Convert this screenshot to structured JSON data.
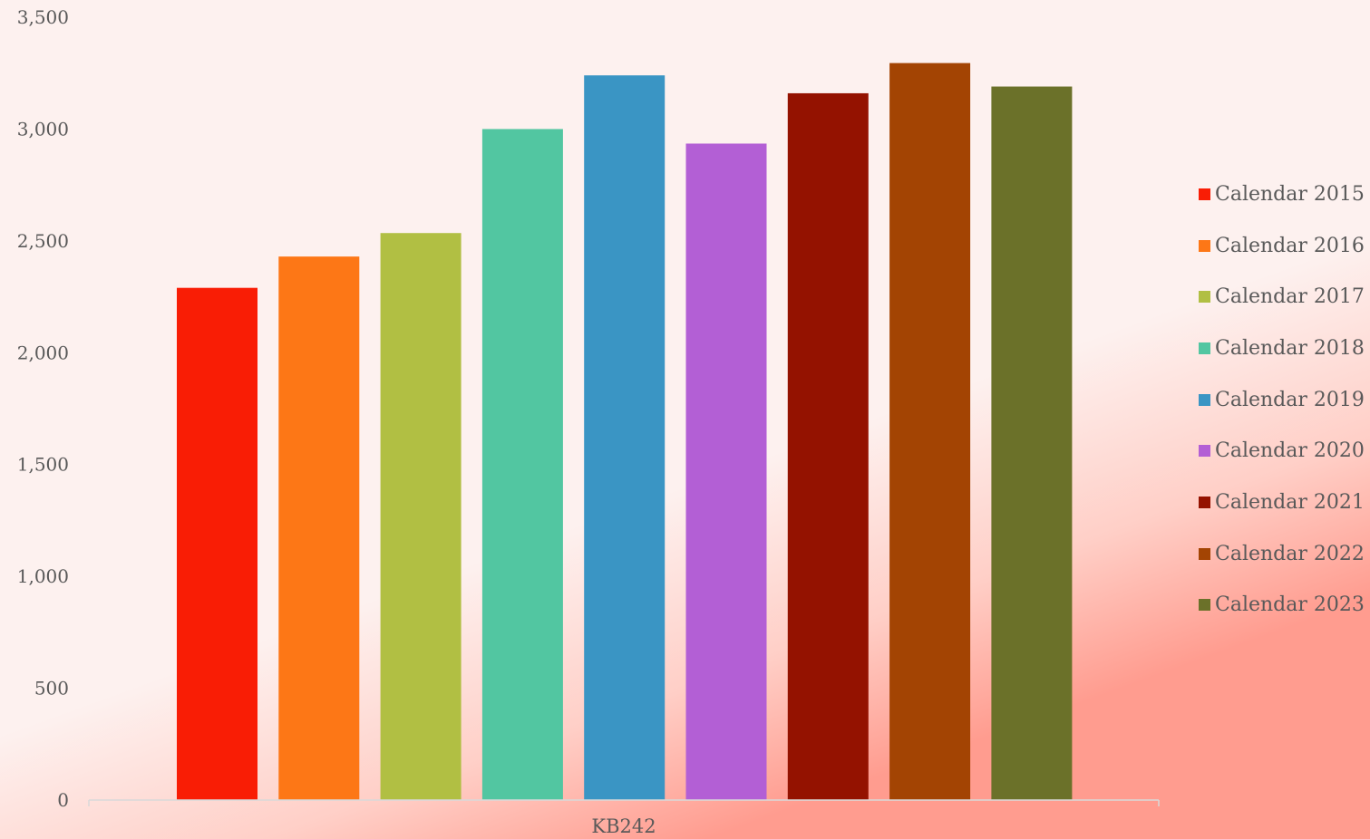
{
  "chart_data": {
    "type": "bar",
    "categories": [
      "KB242"
    ],
    "series": [
      {
        "name": "Calendar 2015",
        "values": [
          2290
        ],
        "color": "#f91d05"
      },
      {
        "name": "Calendar 2016",
        "values": [
          2430
        ],
        "color": "#fd7716"
      },
      {
        "name": "Calendar 2017",
        "values": [
          2535
        ],
        "color": "#b1bf43"
      },
      {
        "name": "Calendar 2018",
        "values": [
          3000
        ],
        "color": "#52c6a1"
      },
      {
        "name": "Calendar 2019",
        "values": [
          3240
        ],
        "color": "#3a95c4"
      },
      {
        "name": "Calendar 2020",
        "values": [
          2935
        ],
        "color": "#b35fd5"
      },
      {
        "name": "Calendar 2021",
        "values": [
          3160
        ],
        "color": "#941200"
      },
      {
        "name": "Calendar 2022",
        "values": [
          3295
        ],
        "color": "#a34403"
      },
      {
        "name": "Calendar 2023",
        "values": [
          3190
        ],
        "color": "#6b7129"
      }
    ],
    "yticks": [
      "0",
      "500",
      "1,000",
      "1,500",
      "2,000",
      "2,500",
      "3,000",
      "3,500"
    ],
    "ylim": [
      0,
      3500
    ],
    "title": "",
    "xlabel": "",
    "ylabel": "",
    "grid": false,
    "legend_position": "right"
  }
}
